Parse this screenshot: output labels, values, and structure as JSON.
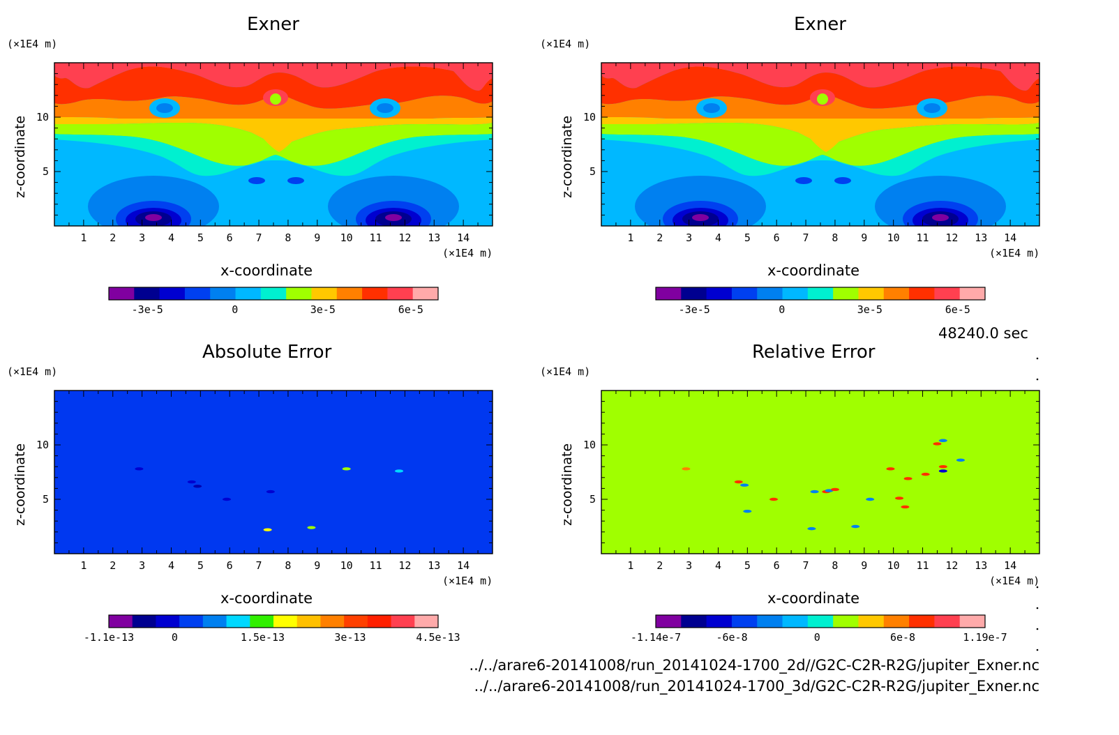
{
  "chart_data": [
    {
      "type": "heatmap",
      "title": "Exner",
      "xlabel": "x-coordinate",
      "ylabel": "z-coordinate",
      "x_unit": "(×1E4 m)",
      "y_unit": "(×1E4 m)",
      "xlim": [
        0,
        15
      ],
      "ylim": [
        0,
        15
      ],
      "x_ticks": [
        "1",
        "2",
        "3",
        "4",
        "5",
        "6",
        "7",
        "8",
        "9",
        "10",
        "11",
        "12",
        "13",
        "14"
      ],
      "y_ticks": [
        "5",
        "10"
      ],
      "colorbar": {
        "colors": [
          "#8000a0",
          "#000090",
          "#0000d0",
          "#0040f0",
          "#0080f0",
          "#00b8ff",
          "#00f0d0",
          "#a0ff00",
          "#ffc800",
          "#ff8000",
          "#ff3000",
          "#ff4050",
          "#ffaaaa"
        ],
        "tick_labels": [
          "-3e-5",
          "0",
          "3e-5",
          "6e-5"
        ]
      }
    },
    {
      "type": "heatmap",
      "title": "Exner",
      "xlabel": "x-coordinate",
      "ylabel": "z-coordinate",
      "x_unit": "(×1E4 m)",
      "y_unit": "(×1E4 m)",
      "xlim": [
        0,
        15
      ],
      "ylim": [
        0,
        15
      ],
      "x_ticks": [
        "1",
        "2",
        "3",
        "4",
        "5",
        "6",
        "7",
        "8",
        "9",
        "10",
        "11",
        "12",
        "13",
        "14"
      ],
      "y_ticks": [
        "5",
        "10"
      ],
      "colorbar": {
        "colors": [
          "#8000a0",
          "#000090",
          "#0000d0",
          "#0040f0",
          "#0080f0",
          "#00b8ff",
          "#00f0d0",
          "#a0ff00",
          "#ffc800",
          "#ff8000",
          "#ff3000",
          "#ff4050",
          "#ffaaaa"
        ],
        "tick_labels": [
          "-3e-5",
          "0",
          "3e-5",
          "6e-5"
        ]
      }
    },
    {
      "type": "heatmap",
      "title": "Absolute Error",
      "xlabel": "x-coordinate",
      "ylabel": "z-coordinate",
      "x_unit": "(×1E4 m)",
      "y_unit": "(×1E4 m)",
      "xlim": [
        0,
        15
      ],
      "ylim": [
        0,
        15
      ],
      "x_ticks": [
        "1",
        "2",
        "3",
        "4",
        "5",
        "6",
        "7",
        "8",
        "9",
        "10",
        "11",
        "12",
        "13",
        "14"
      ],
      "y_ticks": [
        "5",
        "10"
      ],
      "background_color": "#0038f0",
      "colorbar": {
        "colors": [
          "#8000a0",
          "#000090",
          "#0000d0",
          "#0040f0",
          "#0080f0",
          "#00d8ff",
          "#30f000",
          "#ffff00",
          "#ffc000",
          "#ff8000",
          "#ff4000",
          "#ff2000",
          "#ff4050",
          "#ffaaaa"
        ],
        "tick_labels": [
          "-1.1e-13",
          "0",
          "1.5e-13",
          "3e-13",
          "4.5e-13"
        ]
      },
      "spots": [
        {
          "x": 2.9,
          "z": 7.8,
          "color": "#0000d0"
        },
        {
          "x": 4.7,
          "z": 6.6,
          "color": "#0000d0"
        },
        {
          "x": 4.9,
          "z": 6.2,
          "color": "#0000b0"
        },
        {
          "x": 5.9,
          "z": 5.0,
          "color": "#0000d0"
        },
        {
          "x": 7.4,
          "z": 5.7,
          "color": "#0000d0"
        },
        {
          "x": 10.0,
          "z": 7.8,
          "color": "#a0ff00"
        },
        {
          "x": 11.8,
          "z": 7.6,
          "color": "#00d8ff"
        },
        {
          "x": 7.3,
          "z": 2.2,
          "color": "#ffff00"
        },
        {
          "x": 8.8,
          "z": 2.4,
          "color": "#a0ff00"
        }
      ]
    },
    {
      "type": "heatmap",
      "title": "Relative Error",
      "xlabel": "x-coordinate",
      "ylabel": "z-coordinate",
      "x_unit": "(×1E4 m)",
      "y_unit": "(×1E4 m)",
      "xlim": [
        0,
        15
      ],
      "ylim": [
        0,
        15
      ],
      "x_ticks": [
        "1",
        "2",
        "3",
        "4",
        "5",
        "6",
        "7",
        "8",
        "9",
        "10",
        "11",
        "12",
        "13",
        "14"
      ],
      "y_ticks": [
        "5",
        "10"
      ],
      "background_color": "#a0ff00",
      "colorbar": {
        "colors": [
          "#8000a0",
          "#000090",
          "#0000d0",
          "#0040f0",
          "#0080f0",
          "#00b8ff",
          "#00f0d0",
          "#a0ff00",
          "#ffc800",
          "#ff8000",
          "#ff3000",
          "#ff4050",
          "#ffaaaa"
        ],
        "tick_labels": [
          "-1.14e-7",
          "-6e-8",
          "0",
          "6e-8",
          "1.19e-7"
        ]
      },
      "spots": [
        {
          "x": 2.9,
          "z": 7.8,
          "color": "#ff8000"
        },
        {
          "x": 4.7,
          "z": 6.6,
          "color": "#ff3000"
        },
        {
          "x": 4.9,
          "z": 6.3,
          "color": "#0080f0"
        },
        {
          "x": 5.0,
          "z": 3.9,
          "color": "#0080f0"
        },
        {
          "x": 5.9,
          "z": 5.0,
          "color": "#ff3000"
        },
        {
          "x": 7.3,
          "z": 5.7,
          "color": "#0080f0"
        },
        {
          "x": 7.7,
          "z": 5.7,
          "color": "#ff3000"
        },
        {
          "x": 7.8,
          "z": 5.8,
          "color": "#0080f0"
        },
        {
          "x": 8.0,
          "z": 5.9,
          "color": "#ff3000"
        },
        {
          "x": 7.2,
          "z": 2.3,
          "color": "#0080f0"
        },
        {
          "x": 8.7,
          "z": 2.5,
          "color": "#0080f0"
        },
        {
          "x": 9.2,
          "z": 5.0,
          "color": "#0080f0"
        },
        {
          "x": 9.9,
          "z": 7.8,
          "color": "#ff3000"
        },
        {
          "x": 10.2,
          "z": 5.1,
          "color": "#ff3000"
        },
        {
          "x": 10.4,
          "z": 4.3,
          "color": "#ff3000"
        },
        {
          "x": 10.5,
          "z": 6.9,
          "color": "#ff3000"
        },
        {
          "x": 11.1,
          "z": 7.3,
          "color": "#ff3000"
        },
        {
          "x": 11.5,
          "z": 10.1,
          "color": "#ff3000"
        },
        {
          "x": 11.7,
          "z": 10.4,
          "color": "#0080f0"
        },
        {
          "x": 11.7,
          "z": 7.6,
          "color": "#0000d0"
        },
        {
          "x": 11.7,
          "z": 8.0,
          "color": "#ff3000"
        },
        {
          "x": 12.3,
          "z": 8.6,
          "color": "#0080f0"
        }
      ]
    }
  ],
  "timestamp": "48240.0 sec",
  "file_paths": [
    "../../arare6-20141008/run_20141024-1700_2d//G2C-C2R-R2G/jupiter_Exner.nc",
    "../../arare6-20141008/run_20141024-1700_3d/G2C-C2R-R2G/jupiter_Exner.nc"
  ]
}
